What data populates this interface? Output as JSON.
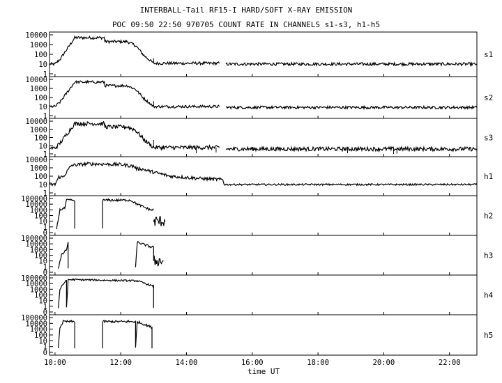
{
  "title": "INTERBALL-Tail RF15-I HARD/SOFT X-RAY EMISSION",
  "subtitle": "POC 09:50 22:50 970705  COUNT RATE IN CHANNELS s1-s3, h1-h5",
  "chart_data": [
    {
      "type": "line",
      "channel": "s1",
      "y_scale": "log",
      "y_ticks": [
        "10000",
        "1000",
        "100",
        "10",
        "1"
      ],
      "x_range_ut_hours": [
        9.833,
        22.833
      ],
      "segments": [
        {
          "x": [
            9.83,
            10.0,
            10.15,
            10.6,
            11.5,
            11.52,
            12.2,
            12.45,
            12.7,
            13.0,
            14.0,
            15.0
          ],
          "y": [
            10,
            10,
            30,
            5000,
            5000,
            2000,
            2000,
            800,
            80,
            12,
            12,
            12
          ],
          "noise_decades": 0.15
        },
        {
          "x": [
            15.2,
            22.83
          ],
          "y": [
            10,
            10
          ],
          "noise_decades": 0.15
        }
      ],
      "spikes": [
        {
          "x": 13.0,
          "y": 40
        }
      ]
    },
    {
      "type": "line",
      "channel": "s2",
      "y_scale": "log",
      "y_ticks": [
        "10000",
        "1000",
        "100",
        "10",
        "1"
      ],
      "x_range_ut_hours": [
        9.833,
        22.833
      ],
      "segments": [
        {
          "x": [
            9.83,
            10.0,
            10.15,
            10.6,
            11.5,
            11.52,
            12.2,
            12.45,
            12.7,
            13.0,
            15.0
          ],
          "y": [
            10,
            10,
            30,
            5000,
            5000,
            2000,
            2000,
            800,
            80,
            10,
            10
          ],
          "noise_decades": 0.15
        },
        {
          "x": [
            15.2,
            22.83
          ],
          "y": [
            8,
            8
          ],
          "noise_decades": 0.15
        }
      ],
      "spikes": [
        {
          "x": 13.0,
          "y": 40
        }
      ]
    },
    {
      "type": "line",
      "channel": "s3",
      "y_scale": "log",
      "y_ticks": [
        "10000",
        "1000",
        "100",
        "10",
        "1"
      ],
      "x_range_ut_hours": [
        9.833,
        22.833
      ],
      "segments": [
        {
          "x": [
            9.83,
            10.0,
            10.15,
            10.6,
            11.5,
            11.52,
            12.2,
            12.45,
            12.7,
            13.0,
            15.0
          ],
          "y": [
            5,
            5,
            20,
            5000,
            5000,
            2000,
            2000,
            800,
            60,
            6,
            6
          ],
          "noise_decades": 0.25
        },
        {
          "x": [
            15.2,
            22.83
          ],
          "y": [
            4,
            4
          ],
          "noise_decades": 0.25
        }
      ],
      "spikes": [
        {
          "x": 13.0,
          "y": 50
        },
        {
          "x": 14.3,
          "y": 1.2
        },
        {
          "x": 14.9,
          "y": 1.5
        },
        {
          "x": 18.9,
          "y": 1.2
        },
        {
          "x": 20.3,
          "y": 1.0
        },
        {
          "x": 20.4,
          "y": 1.1
        }
      ]
    },
    {
      "type": "line",
      "channel": "h1",
      "y_scale": "log",
      "y_ticks": [
        "10000",
        "1000",
        "100",
        "10",
        "1"
      ],
      "x_range_ut_hours": [
        9.833,
        22.833
      ],
      "segments": [
        {
          "x": [
            9.83,
            10.0,
            10.12,
            10.25,
            10.35,
            10.5,
            11.0,
            12.0,
            12.4,
            12.5,
            12.6,
            13.0,
            13.5,
            14.5,
            15.0,
            15.1
          ],
          "y": [
            10,
            10,
            80,
            80,
            300,
            2000,
            3000,
            2500,
            1500,
            700,
            800,
            300,
            100,
            50,
            40,
            40
          ],
          "noise_decades": 0.2
        },
        {
          "x": [
            15.1,
            15.15,
            22.83
          ],
          "y": [
            40,
            10,
            10
          ],
          "noise_decades": 0.1
        }
      ],
      "spikes": []
    },
    {
      "type": "line",
      "channel": "h2",
      "y_scale": "log",
      "y_ticks": [
        "100000",
        "10000",
        "1000",
        "100",
        "10",
        "1",
        "0"
      ],
      "x_range_ut_hours": [
        9.833,
        22.833
      ],
      "segments": [
        {
          "x": [
            10.05,
            10.15,
            10.3,
            10.35,
            10.55,
            10.6,
            10.6
          ],
          "y": [
            0.5,
            1000,
            2000,
            50000,
            50000,
            20000,
            0.5
          ],
          "noise_decades": 0.2
        },
        {
          "x": [
            11.45,
            11.45,
            12.3,
            12.5,
            12.9,
            13.0
          ],
          "y": [
            0.5,
            50000,
            50000,
            10000,
            1000,
            1000
          ],
          "noise_decades": 0.2
        },
        {
          "x": [
            13.0,
            13.35
          ],
          "y": [
            10,
            10
          ],
          "noise_decades": 1.0
        }
      ],
      "spikes": []
    },
    {
      "type": "line",
      "channel": "h3",
      "y_scale": "log",
      "y_ticks": [
        "100000",
        "10000",
        "1000",
        "100",
        "10",
        "1",
        "0"
      ],
      "x_range_ut_hours": [
        9.833,
        22.833
      ],
      "segments": [
        {
          "x": [
            10.1,
            10.2,
            10.35,
            10.4,
            10.4
          ],
          "y": [
            0.5,
            100,
            1000,
            20000,
            0.5
          ],
          "noise_decades": 0.2
        },
        {
          "x": [
            12.45,
            12.5,
            12.9,
            13.0,
            13.0
          ],
          "y": [
            0.5,
            20000,
            3000,
            3000,
            10
          ],
          "noise_decades": 0.2
        },
        {
          "x": [
            13.0,
            13.3
          ],
          "y": [
            10,
            10
          ],
          "noise_decades": 1.0
        }
      ],
      "spikes": []
    },
    {
      "type": "line",
      "channel": "h4",
      "y_scale": "log",
      "y_ticks": [
        "100000",
        "10000",
        "1000",
        "100",
        "10",
        "1",
        "0"
      ],
      "x_range_ut_hours": [
        9.833,
        22.833
      ],
      "segments": [
        {
          "x": [
            10.1,
            10.15,
            10.35,
            10.35,
            10.4,
            12.5,
            12.9,
            13.0,
            13.0
          ],
          "y": [
            0.5,
            1000,
            50000,
            0.5,
            50000,
            30000,
            5000,
            3000,
            0.5
          ],
          "noise_decades": 0.15
        }
      ],
      "spikes": []
    },
    {
      "type": "line",
      "channel": "h5",
      "y_scale": "log",
      "y_ticks": [
        "100000",
        "10000",
        "1000",
        "100",
        "10",
        "1",
        "0"
      ],
      "x_range_ut_hours": [
        9.833,
        22.833
      ],
      "segments": [
        {
          "x": [
            10.1,
            10.15,
            10.25,
            10.6,
            10.6
          ],
          "y": [
            0.5,
            2000,
            20000,
            20000,
            0.5
          ],
          "noise_decades": 0.2
        },
        {
          "x": [
            11.45,
            11.45,
            12.45,
            12.45,
            12.5,
            12.95,
            12.95
          ],
          "y": [
            0.5,
            20000,
            20000,
            0.5,
            20000,
            2000,
            0.5
          ],
          "noise_decades": 0.2
        }
      ],
      "spikes": []
    }
  ],
  "x_axis": {
    "label": "time UT",
    "ticks": [
      {
        "value": 10,
        "label": "10:00"
      },
      {
        "value": 12,
        "label": "12:00"
      },
      {
        "value": 14,
        "label": "14:00"
      },
      {
        "value": 16,
        "label": "16:00"
      },
      {
        "value": 18,
        "label": "18:00"
      },
      {
        "value": 20,
        "label": "20:00"
      },
      {
        "value": 22,
        "label": "22:00"
      }
    ],
    "range": [
      9.833,
      22.833
    ]
  }
}
